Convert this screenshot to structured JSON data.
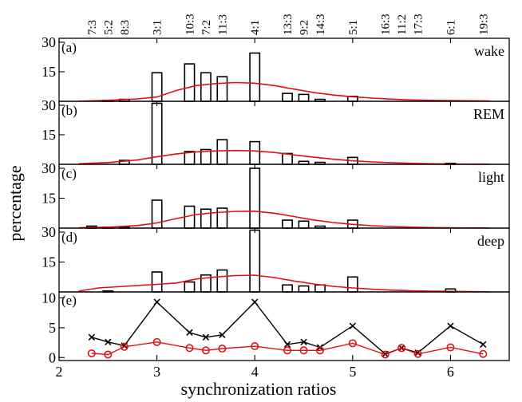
{
  "chart_data": {
    "type": "bar",
    "xlabel": "synchronization ratios",
    "ylabel": "percentage",
    "xlim": [
      2,
      6.6
    ],
    "x_ticks": [
      2,
      3,
      4,
      5,
      6
    ],
    "x_tick_labels": [
      "2",
      "3",
      "4",
      "5",
      "6"
    ],
    "top_ratio_labels": [
      {
        "x": 2.333,
        "label": "7:3"
      },
      {
        "x": 2.5,
        "label": "5:2"
      },
      {
        "x": 2.667,
        "label": "8:3"
      },
      {
        "x": 3.0,
        "label": "3:1"
      },
      {
        "x": 3.333,
        "label": "10:3"
      },
      {
        "x": 3.5,
        "label": "7:2"
      },
      {
        "x": 3.667,
        "label": "11:3"
      },
      {
        "x": 4.0,
        "label": "4:1"
      },
      {
        "x": 4.333,
        "label": "13:3"
      },
      {
        "x": 4.5,
        "label": "9:2"
      },
      {
        "x": 4.667,
        "label": "14:3"
      },
      {
        "x": 5.0,
        "label": "5:1"
      },
      {
        "x": 5.333,
        "label": "16:3"
      },
      {
        "x": 5.5,
        "label": "11:2"
      },
      {
        "x": 5.667,
        "label": "17:3"
      },
      {
        "x": 6.0,
        "label": "6:1"
      },
      {
        "x": 6.333,
        "label": "19:3"
      }
    ],
    "bar_width": 0.1,
    "panels": [
      {
        "tag": "(a)",
        "stage": "wake",
        "ylim": [
          0,
          32
        ],
        "y_ticks": [
          15,
          30
        ],
        "y_tick_labels": [
          "15",
          "30"
        ],
        "bars": [
          {
            "x": 2.333,
            "y": 0
          },
          {
            "x": 2.5,
            "y": 0.5
          },
          {
            "x": 2.667,
            "y": 1
          },
          {
            "x": 3.0,
            "y": 14.5
          },
          {
            "x": 3.333,
            "y": 19
          },
          {
            "x": 3.5,
            "y": 14.5
          },
          {
            "x": 3.667,
            "y": 12.5
          },
          {
            "x": 4.0,
            "y": 24.5
          },
          {
            "x": 4.333,
            "y": 4
          },
          {
            "x": 4.5,
            "y": 3.5
          },
          {
            "x": 4.667,
            "y": 1
          },
          {
            "x": 5.0,
            "y": 2.5
          },
          {
            "x": 5.333,
            "y": 0
          },
          {
            "x": 5.5,
            "y": 0
          },
          {
            "x": 5.667,
            "y": 0
          },
          {
            "x": 6.0,
            "y": 0
          },
          {
            "x": 6.333,
            "y": 0
          }
        ],
        "curve": [
          [
            2.2,
            0.1
          ],
          [
            2.5,
            0.5
          ],
          [
            2.8,
            1.2
          ],
          [
            3.0,
            2.2
          ],
          [
            3.2,
            5.5
          ],
          [
            3.4,
            8.0
          ],
          [
            3.6,
            9.0
          ],
          [
            3.8,
            9.5
          ],
          [
            4.0,
            9.2
          ],
          [
            4.2,
            8.0
          ],
          [
            4.4,
            6.2
          ],
          [
            4.6,
            4.5
          ],
          [
            4.8,
            3.2
          ],
          [
            5.0,
            2.3
          ],
          [
            5.2,
            1.6
          ],
          [
            5.4,
            1.1
          ],
          [
            5.6,
            0.7
          ],
          [
            5.8,
            0.5
          ],
          [
            6.0,
            0.4
          ],
          [
            6.2,
            0.3
          ],
          [
            6.4,
            0.2
          ]
        ]
      },
      {
        "tag": "(b)",
        "stage": "REM",
        "ylim": [
          0,
          32
        ],
        "y_ticks": [
          15,
          30
        ],
        "y_tick_labels": [
          "15",
          "30"
        ],
        "bars": [
          {
            "x": 2.333,
            "y": 0
          },
          {
            "x": 2.5,
            "y": 0
          },
          {
            "x": 2.667,
            "y": 2
          },
          {
            "x": 3.0,
            "y": 31
          },
          {
            "x": 3.333,
            "y": 6.5
          },
          {
            "x": 3.5,
            "y": 7.5
          },
          {
            "x": 3.667,
            "y": 12.5
          },
          {
            "x": 4.0,
            "y": 11.5
          },
          {
            "x": 4.333,
            "y": 5.5
          },
          {
            "x": 4.5,
            "y": 1.5
          },
          {
            "x": 4.667,
            "y": 1
          },
          {
            "x": 5.0,
            "y": 3.5
          },
          {
            "x": 5.333,
            "y": 0
          },
          {
            "x": 5.5,
            "y": 0
          },
          {
            "x": 5.667,
            "y": 0
          },
          {
            "x": 6.0,
            "y": 0.5
          },
          {
            "x": 6.333,
            "y": 0
          }
        ],
        "curve": [
          [
            2.2,
            0.3
          ],
          [
            2.5,
            0.9
          ],
          [
            2.8,
            2.2
          ],
          [
            3.0,
            3.8
          ],
          [
            3.2,
            5.3
          ],
          [
            3.4,
            6.3
          ],
          [
            3.6,
            6.8
          ],
          [
            3.8,
            7.0
          ],
          [
            4.0,
            6.8
          ],
          [
            4.2,
            6.0
          ],
          [
            4.4,
            4.8
          ],
          [
            4.6,
            3.6
          ],
          [
            4.8,
            2.6
          ],
          [
            5.0,
            1.8
          ],
          [
            5.2,
            1.2
          ],
          [
            5.4,
            0.8
          ],
          [
            5.6,
            0.5
          ],
          [
            5.8,
            0.3
          ],
          [
            6.0,
            0.2
          ],
          [
            6.2,
            0.1
          ],
          [
            6.4,
            0.1
          ]
        ]
      },
      {
        "tag": "(c)",
        "stage": "light",
        "ylim": [
          0,
          32
        ],
        "y_ticks": [
          15,
          30
        ],
        "y_tick_labels": [
          "15",
          "30"
        ],
        "bars": [
          {
            "x": 2.333,
            "y": 1
          },
          {
            "x": 2.5,
            "y": 0.5
          },
          {
            "x": 2.667,
            "y": 0.5
          },
          {
            "x": 3.0,
            "y": 14
          },
          {
            "x": 3.333,
            "y": 11
          },
          {
            "x": 3.5,
            "y": 9.5
          },
          {
            "x": 3.667,
            "y": 10
          },
          {
            "x": 4.0,
            "y": 30
          },
          {
            "x": 4.333,
            "y": 4
          },
          {
            "x": 4.5,
            "y": 3.5
          },
          {
            "x": 4.667,
            "y": 1
          },
          {
            "x": 5.0,
            "y": 4
          },
          {
            "x": 5.333,
            "y": 0
          },
          {
            "x": 5.5,
            "y": 0
          },
          {
            "x": 5.667,
            "y": 0
          },
          {
            "x": 6.0,
            "y": 0
          },
          {
            "x": 6.333,
            "y": 0
          }
        ],
        "curve": [
          [
            2.2,
            0.2
          ],
          [
            2.5,
            0.5
          ],
          [
            2.8,
            1.3
          ],
          [
            3.0,
            2.6
          ],
          [
            3.2,
            4.8
          ],
          [
            3.4,
            6.8
          ],
          [
            3.6,
            7.8
          ],
          [
            3.8,
            8.4
          ],
          [
            4.0,
            8.5
          ],
          [
            4.2,
            7.5
          ],
          [
            4.4,
            5.8
          ],
          [
            4.6,
            4.1
          ],
          [
            4.8,
            2.8
          ],
          [
            5.0,
            1.9
          ],
          [
            5.2,
            1.2
          ],
          [
            5.4,
            0.8
          ],
          [
            5.6,
            0.5
          ],
          [
            5.8,
            0.3
          ],
          [
            6.0,
            0.2
          ],
          [
            6.2,
            0.1
          ],
          [
            6.4,
            0.1
          ]
        ]
      },
      {
        "tag": "(d)",
        "stage": "deep",
        "ylim": [
          0,
          32
        ],
        "y_ticks": [
          15,
          30
        ],
        "y_tick_labels": [
          "15",
          "30"
        ],
        "bars": [
          {
            "x": 2.333,
            "y": 0
          },
          {
            "x": 2.5,
            "y": 0.5
          },
          {
            "x": 2.667,
            "y": 0
          },
          {
            "x": 3.0,
            "y": 10
          },
          {
            "x": 3.333,
            "y": 5
          },
          {
            "x": 3.5,
            "y": 8.5
          },
          {
            "x": 3.667,
            "y": 11
          },
          {
            "x": 4.0,
            "y": 31
          },
          {
            "x": 4.333,
            "y": 3.5
          },
          {
            "x": 4.5,
            "y": 3
          },
          {
            "x": 4.667,
            "y": 3.5
          },
          {
            "x": 5.0,
            "y": 7.5
          },
          {
            "x": 5.333,
            "y": 0
          },
          {
            "x": 5.5,
            "y": 0
          },
          {
            "x": 5.667,
            "y": 0
          },
          {
            "x": 6.0,
            "y": 1.5
          },
          {
            "x": 6.333,
            "y": 0
          }
        ],
        "curve": [
          [
            2.2,
            0.4
          ],
          [
            2.4,
            2.0
          ],
          [
            2.6,
            2.6
          ],
          [
            2.8,
            3.2
          ],
          [
            3.0,
            3.8
          ],
          [
            3.2,
            4.5
          ],
          [
            3.4,
            6.5
          ],
          [
            3.6,
            7.5
          ],
          [
            3.8,
            8.2
          ],
          [
            4.0,
            8.4
          ],
          [
            4.2,
            7.2
          ],
          [
            4.4,
            5.5
          ],
          [
            4.6,
            4.0
          ],
          [
            4.8,
            2.8
          ],
          [
            5.0,
            2.0
          ],
          [
            5.2,
            1.4
          ],
          [
            5.4,
            0.9
          ],
          [
            5.6,
            0.6
          ],
          [
            5.8,
            0.4
          ],
          [
            6.0,
            0.3
          ],
          [
            6.2,
            0.2
          ],
          [
            6.4,
            0.1
          ]
        ]
      }
    ],
    "panel_e": {
      "tag": "(e)",
      "type": "line",
      "ylim": [
        -0.5,
        11
      ],
      "y_ticks": [
        0,
        5,
        10
      ],
      "y_tick_labels": [
        "0",
        "5",
        "10"
      ],
      "series": [
        {
          "marker": "x",
          "color": "#000000",
          "x": [
            2.333,
            2.5,
            2.667,
            3.0,
            3.333,
            3.5,
            3.667,
            4.0,
            4.333,
            4.5,
            4.667,
            5.0,
            5.333,
            5.5,
            5.667,
            6.0,
            6.333
          ],
          "y": [
            3.4,
            2.6,
            2.0,
            9.3,
            4.2,
            3.4,
            3.8,
            9.3,
            2.2,
            2.6,
            1.7,
            5.3,
            0.6,
            1.6,
            0.8,
            5.3,
            2.2
          ]
        },
        {
          "marker": "o",
          "color": "#e01010",
          "x": [
            2.333,
            2.5,
            2.667,
            3.0,
            3.333,
            3.5,
            3.667,
            4.0,
            4.333,
            4.5,
            4.667,
            5.0,
            5.333,
            5.5,
            5.667,
            6.0,
            6.333
          ],
          "y": [
            0.7,
            0.5,
            1.8,
            2.6,
            1.6,
            1.2,
            1.5,
            1.9,
            1.2,
            1.2,
            1.2,
            2.4,
            0.5,
            1.6,
            0.6,
            1.7,
            0.6
          ]
        }
      ]
    }
  }
}
